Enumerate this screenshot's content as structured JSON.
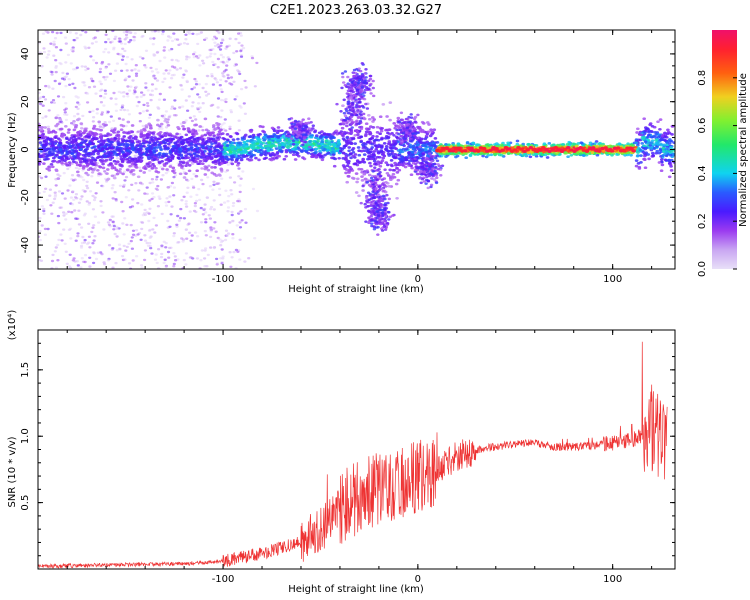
{
  "figure_title": "C2E1.2023.263.03.32.G27",
  "colors": {
    "spectrogram_ramp": [
      "#e8e0f8",
      "#c9a6f2",
      "#9b3bf0",
      "#6a10f5",
      "#2a1bff",
      "#0fd3f0",
      "#22e86a",
      "#c8f020",
      "#ff7d10",
      "#ff2020",
      "#f0106a"
    ],
    "snr_line": "#ee3333"
  },
  "chart_data": [
    {
      "type": "heatmap",
      "title": "C2E1.2023.263.03.32.G27",
      "xlabel": "Height of straight line (km)",
      "ylabel": "Frequency (Hz)",
      "xlim": [
        -195,
        132
      ],
      "ylim": [
        -50,
        50
      ],
      "x_ticks": [
        "-100",
        "0",
        "100"
      ],
      "y_ticks": [
        "40",
        "20",
        "0",
        "-20",
        "-40"
      ],
      "colorbar": {
        "label": "Normalized spectral amplitude",
        "range": [
          0,
          1
        ],
        "ticks": [
          "0.0",
          "0.2",
          "0.4",
          "0.6",
          "0.8"
        ]
      },
      "grid": false,
      "description_points": [
        {
          "x": -180,
          "y": 0,
          "amp": 0.25
        },
        {
          "x": -140,
          "y": 0,
          "amp": 0.3
        },
        {
          "x": -80,
          "y": 2,
          "amp": 0.5
        },
        {
          "x": -60,
          "y": 4,
          "amp": 0.55
        },
        {
          "x": -40,
          "y": 2,
          "amp": 0.35
        },
        {
          "x": -30,
          "y": 20,
          "amp": 0.15
        },
        {
          "x": -20,
          "y": -20,
          "amp": 0.2
        },
        {
          "x": 0,
          "y": 0,
          "amp": 0.3
        },
        {
          "x": 30,
          "y": 0,
          "amp": 0.95
        },
        {
          "x": 70,
          "y": 0,
          "amp": 0.95
        },
        {
          "x": 110,
          "y": 0,
          "amp": 0.9
        },
        {
          "x": 125,
          "y": 2,
          "amp": 0.4
        }
      ]
    },
    {
      "type": "line",
      "xlabel": "Height of straight line (km)",
      "ylabel": "SNR (10 * v/v)",
      "y_multiplier": "(x10⁴)",
      "xlim": [
        -195,
        132
      ],
      "ylim": [
        0,
        1.8
      ],
      "x_ticks": [
        "-100",
        "0",
        "100"
      ],
      "y_ticks": [
        "1.5",
        "1.0",
        "0.5"
      ],
      "grid": false,
      "series": [
        {
          "x": [
            -195,
            -160,
            -120,
            -100,
            -80,
            -60,
            -50,
            -40,
            -30,
            -20,
            -10,
            0,
            10,
            20,
            30,
            40,
            50,
            60,
            70,
            80,
            90,
            100,
            110,
            120,
            128
          ],
          "y": [
            0.02,
            0.03,
            0.04,
            0.06,
            0.12,
            0.2,
            0.3,
            0.45,
            0.55,
            0.6,
            0.65,
            0.7,
            0.75,
            0.85,
            0.9,
            0.92,
            0.94,
            0.95,
            0.92,
            0.92,
            0.93,
            0.95,
            0.97,
            1.05,
            1.0
          ]
        }
      ]
    }
  ]
}
